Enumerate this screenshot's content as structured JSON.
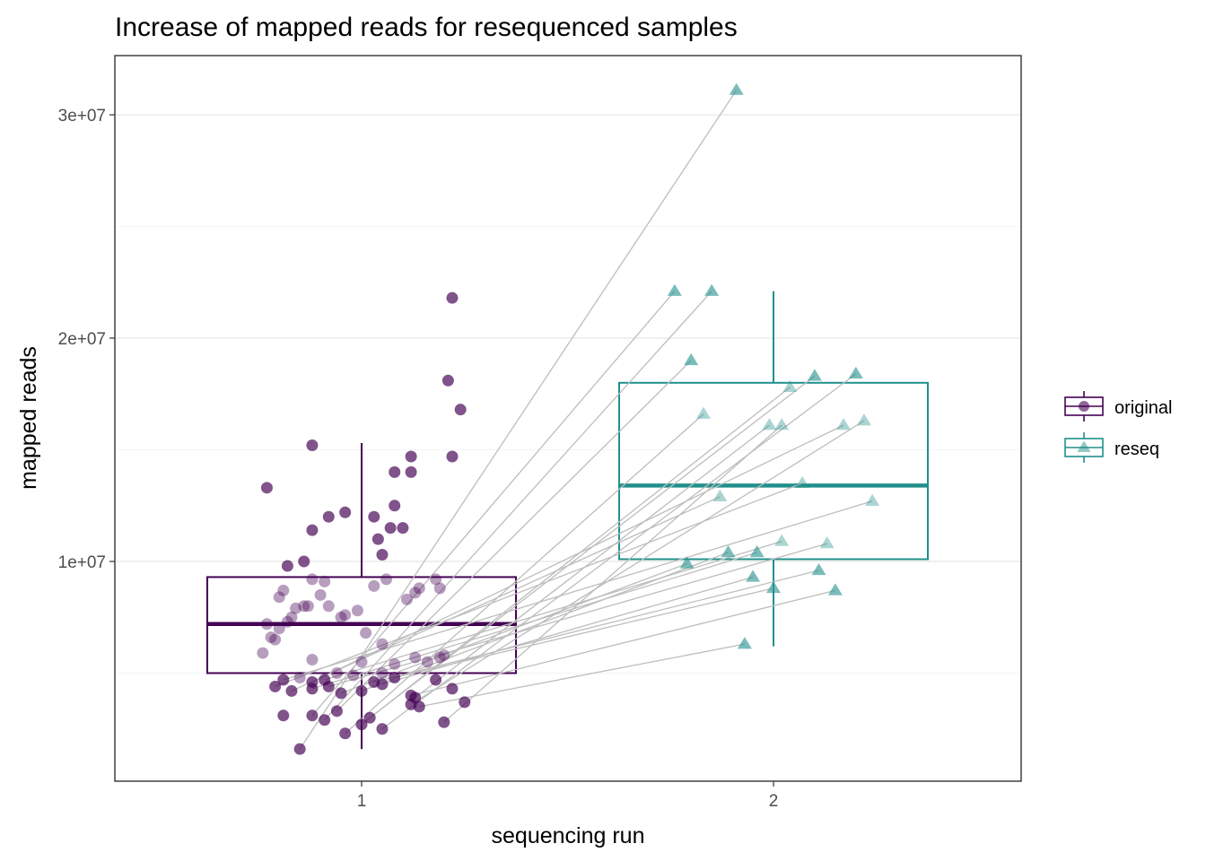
{
  "chart_data": {
    "type": "scatter",
    "title": "Increase of mapped reads for resequenced samples",
    "xlabel": "sequencing run",
    "ylabel": "mapped reads",
    "x_categories": [
      "1",
      "2"
    ],
    "ylim": [
      0,
      32000000
    ],
    "y_ticks": [
      {
        "value": 10000000,
        "label": "1e+07"
      },
      {
        "value": 20000000,
        "label": "2e+07"
      },
      {
        "value": 30000000,
        "label": "3e+07"
      }
    ],
    "grid": true,
    "legend": {
      "placement": "right",
      "entries": [
        {
          "label": "original",
          "color": "#440154",
          "shape": "circle"
        },
        {
          "label": "reseq",
          "color": "#21908C",
          "shape": "triangle"
        }
      ]
    },
    "boxplots": [
      {
        "group": "original",
        "x": 1,
        "q1": 5000000,
        "median": 7200000,
        "q3": 9300000,
        "whisker_low": 1600000,
        "whisker_high": 15300000,
        "color": "#440154"
      },
      {
        "group": "reseq",
        "x": 2,
        "q1": 10100000,
        "median": 13400000,
        "q3": 18000000,
        "whisker_low": 6200000,
        "whisker_high": 22100000,
        "color": "#21908C"
      }
    ],
    "series": [
      {
        "name": "original",
        "x_offsets": [
          -0.23,
          -0.12,
          -0.04,
          -0.08,
          -0.12,
          -0.14,
          -0.18,
          0.03,
          0.08,
          0.04,
          0.05,
          0.08,
          0.12,
          0.1,
          0.12,
          0.07,
          0.22,
          0.21,
          0.24,
          0.22,
          -0.19,
          -0.2,
          -0.24,
          -0.22,
          -0.17,
          -0.2,
          -0.18,
          -0.23,
          -0.21,
          -0.14,
          -0.1,
          -0.08,
          -0.13,
          -0.16,
          -0.12,
          -0.09,
          -0.05,
          -0.04,
          -0.01,
          0.01,
          0.05,
          0.03,
          0.06,
          0.11,
          0.13,
          0.14,
          0.18,
          0.19,
          -0.15,
          -0.12,
          -0.06,
          -0.02,
          0.0,
          0.05,
          0.08,
          0.13,
          0.16,
          0.19,
          0.2,
          -0.21,
          -0.17,
          -0.19,
          -0.12,
          -0.09,
          -0.08,
          -0.05,
          0.0,
          0.03,
          0.05,
          0.08,
          0.12,
          0.14,
          0.18,
          0.22,
          0.25,
          -0.19,
          -0.15,
          -0.12,
          -0.09,
          -0.06,
          -0.04,
          0.0,
          0.02,
          0.05,
          0.13,
          0.2,
          0.12,
          -0.12
        ],
        "values": [
          13300000,
          15200000,
          12200000,
          12000000,
          11400000,
          10000000,
          9800000,
          12000000,
          12500000,
          11000000,
          10300000,
          14000000,
          14000000,
          11500000,
          14700000,
          11500000,
          21800000,
          18100000,
          16800000,
          14700000,
          8700000,
          8400000,
          5900000,
          6600000,
          7500000,
          7000000,
          7300000,
          7200000,
          6500000,
          8000000,
          8500000,
          8000000,
          8000000,
          7900000,
          9200000,
          9100000,
          7500000,
          7600000,
          7800000,
          6800000,
          6300000,
          8900000,
          9200000,
          8300000,
          8600000,
          8800000,
          9200000,
          8800000,
          4800000,
          5600000,
          5000000,
          4900000,
          5500000,
          5000000,
          5400000,
          5700000,
          5500000,
          5700000,
          5800000,
          4400000,
          4200000,
          4700000,
          4300000,
          4700000,
          4400000,
          4100000,
          4200000,
          4600000,
          4500000,
          4800000,
          4000000,
          3500000,
          4700000,
          4300000,
          3700000,
          3100000,
          1600000,
          3100000,
          2900000,
          3300000,
          2300000,
          2700000,
          3000000,
          2500000,
          3900000,
          2800000,
          3600000,
          4600000
        ],
        "alpha_levels": [
          0.68,
          0.68,
          0.68,
          0.68,
          0.68,
          0.68,
          0.68,
          0.68,
          0.68,
          0.68,
          0.68,
          0.68,
          0.68,
          0.68,
          0.68,
          0.68,
          0.68,
          0.68,
          0.68,
          0.68,
          0.38,
          0.38,
          0.38,
          0.38,
          0.38,
          0.38,
          0.38,
          0.38,
          0.38,
          0.38,
          0.38,
          0.38,
          0.38,
          0.38,
          0.38,
          0.38,
          0.38,
          0.38,
          0.38,
          0.38,
          0.38,
          0.38,
          0.38,
          0.38,
          0.38,
          0.38,
          0.38,
          0.38,
          0.38,
          0.38,
          0.38,
          0.38,
          0.38,
          0.38,
          0.38,
          0.38,
          0.38,
          0.38,
          0.38,
          0.68,
          0.68,
          0.68,
          0.68,
          0.68,
          0.68,
          0.68,
          0.68,
          0.68,
          0.68,
          0.68,
          0.68,
          0.68,
          0.68,
          0.68,
          0.68,
          0.68,
          0.68,
          0.68,
          0.68,
          0.68,
          0.68,
          0.68,
          0.68,
          0.68,
          0.68,
          0.68,
          0.68,
          0.68
        ]
      },
      {
        "name": "reseq",
        "x_offsets": [
          -0.09,
          -0.24,
          -0.15,
          -0.2,
          -0.17,
          0.04,
          0.1,
          0.2,
          -0.01,
          0.02,
          0.22,
          0.17,
          0.07,
          -0.13,
          0.24,
          -0.04,
          0.02,
          0.13,
          -0.21,
          -0.11,
          0.11,
          -0.05,
          0.0,
          0.15,
          -0.07
        ],
        "values": [
          31100000,
          22100000,
          22100000,
          19000000,
          16600000,
          17800000,
          18300000,
          18400000,
          16100000,
          16100000,
          16300000,
          16100000,
          13500000,
          12900000,
          12700000,
          10400000,
          10900000,
          10800000,
          9900000,
          10400000,
          9600000,
          9300000,
          8800000,
          8700000,
          6300000
        ],
        "alpha_levels": [
          0.6,
          0.6,
          0.6,
          0.6,
          0.38,
          0.38,
          0.6,
          0.6,
          0.38,
          0.38,
          0.38,
          0.38,
          0.38,
          0.38,
          0.38,
          0.6,
          0.38,
          0.38,
          0.6,
          0.6,
          0.6,
          0.6,
          0.6,
          0.6,
          0.6
        ]
      }
    ],
    "pairs": [
      {
        "from": 76,
        "to": 0
      },
      {
        "from": 77,
        "to": 1
      },
      {
        "from": 78,
        "to": 2
      },
      {
        "from": 79,
        "to": 3
      },
      {
        "from": 80,
        "to": 4
      },
      {
        "from": 81,
        "to": 5
      },
      {
        "from": 82,
        "to": 6
      },
      {
        "from": 83,
        "to": 7
      },
      {
        "from": 84,
        "to": 8
      },
      {
        "from": 85,
        "to": 9
      },
      {
        "from": 86,
        "to": 10
      },
      {
        "from": 87,
        "to": 11
      },
      {
        "from": 59,
        "to": 12
      },
      {
        "from": 60,
        "to": 13
      },
      {
        "from": 61,
        "to": 14
      },
      {
        "from": 62,
        "to": 15
      },
      {
        "from": 63,
        "to": 16
      },
      {
        "from": 64,
        "to": 17
      },
      {
        "from": 65,
        "to": 18
      },
      {
        "from": 66,
        "to": 19
      },
      {
        "from": 67,
        "to": 20
      },
      {
        "from": 68,
        "to": 21
      },
      {
        "from": 69,
        "to": 22
      },
      {
        "from": 70,
        "to": 23
      },
      {
        "from": 71,
        "to": 24
      }
    ]
  }
}
